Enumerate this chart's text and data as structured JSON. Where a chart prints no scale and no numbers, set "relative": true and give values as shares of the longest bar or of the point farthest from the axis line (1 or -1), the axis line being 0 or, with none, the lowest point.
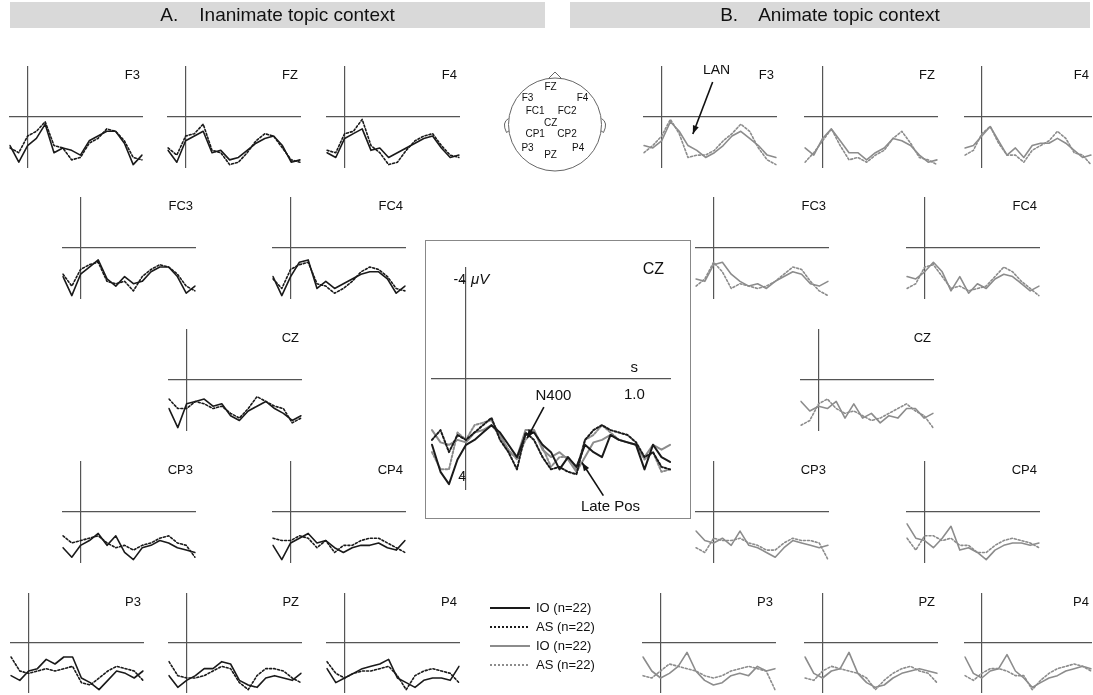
{
  "chart_data": [
    {
      "type": "other",
      "title": "A.    Inanimate topic context"
    },
    {
      "type": "line",
      "title": "F3",
      "relative": true,
      "marker": "none",
      "categories": [
        null,
        null,
        null,
        null,
        null,
        null,
        null,
        null,
        null,
        null,
        null,
        null,
        null,
        null,
        null,
        null
      ],
      "series": [
        {
          "color": "#1a1a1a",
          "line_style": "solid",
          "values": [
            -0.6,
            -0.95,
            -0.6,
            -0.45,
            -0.15,
            -0.75,
            -0.65,
            -0.7,
            -0.8,
            -0.5,
            -0.4,
            -0.3,
            -0.3,
            -0.55,
            -1,
            -0.8
          ]
        },
        {
          "color": "#1a1a1a",
          "line_style": "dotted",
          "values": [
            -0.65,
            -0.75,
            -0.4,
            -0.3,
            -0.1,
            -0.6,
            -0.65,
            -0.9,
            -0.85,
            -0.55,
            -0.45,
            -0.25,
            -0.3,
            -0.5,
            -0.85,
            -0.9
          ]
        }
      ]
    },
    {
      "type": "line",
      "title": "FZ",
      "relative": true,
      "marker": "none",
      "categories": [
        null,
        null,
        null,
        null,
        null,
        null,
        null,
        null,
        null,
        null,
        null,
        null,
        null,
        null,
        null,
        null
      ],
      "series": [
        {
          "color": "#1a1a1a",
          "line_style": "solid",
          "values": [
            -0.7,
            -0.95,
            -0.5,
            -0.4,
            -0.3,
            -0.75,
            -0.7,
            -0.9,
            -0.85,
            -0.7,
            -0.55,
            -0.45,
            -0.4,
            -0.6,
            -0.95,
            -0.9
          ]
        },
        {
          "color": "#1a1a1a",
          "line_style": "dotted",
          "values": [
            -0.65,
            -0.8,
            -0.4,
            -0.35,
            -0.15,
            -0.7,
            -0.75,
            -1,
            -0.95,
            -0.75,
            -0.5,
            -0.35,
            -0.4,
            -0.65,
            -0.9,
            -0.95
          ]
        }
      ]
    },
    {
      "type": "line",
      "title": "F4",
      "relative": true,
      "marker": "none",
      "categories": [
        null,
        null,
        null,
        null,
        null,
        null,
        null,
        null,
        null,
        null,
        null,
        null,
        null,
        null,
        null,
        null
      ],
      "series": [
        {
          "color": "#1a1a1a",
          "line_style": "solid",
          "values": [
            -0.75,
            -0.85,
            -0.45,
            -0.35,
            -0.25,
            -0.7,
            -0.65,
            -0.85,
            -0.75,
            -0.65,
            -0.55,
            -0.45,
            -0.4,
            -0.65,
            -0.85,
            -0.8
          ]
        },
        {
          "color": "#1a1a1a",
          "line_style": "dotted",
          "values": [
            -0.7,
            -0.75,
            -0.35,
            -0.3,
            -0.05,
            -0.6,
            -0.75,
            -1,
            -0.95,
            -0.7,
            -0.5,
            -0.4,
            -0.35,
            -0.6,
            -0.8,
            -0.85
          ]
        }
      ]
    },
    {
      "type": "line",
      "title": "FC3",
      "relative": true,
      "marker": "none",
      "categories": [
        null,
        null,
        null,
        null,
        null,
        null,
        null,
        null,
        null,
        null,
        null,
        null,
        null,
        null,
        null,
        null
      ],
      "series": [
        {
          "color": "#1a1a1a",
          "line_style": "solid",
          "values": [
            -0.6,
            -1,
            -0.55,
            -0.4,
            -0.25,
            -0.65,
            -0.8,
            -0.6,
            -0.75,
            -0.7,
            -0.5,
            -0.4,
            -0.4,
            -0.6,
            -0.95,
            -0.8
          ]
        },
        {
          "color": "#1a1a1a",
          "line_style": "dotted",
          "values": [
            -0.55,
            -0.8,
            -0.45,
            -0.35,
            -0.3,
            -0.7,
            -0.75,
            -0.7,
            -0.9,
            -0.6,
            -0.45,
            -0.35,
            -0.4,
            -0.55,
            -0.8,
            -0.9
          ]
        }
      ]
    },
    {
      "type": "line",
      "title": "FC4",
      "relative": true,
      "marker": "none",
      "categories": [
        null,
        null,
        null,
        null,
        null,
        null,
        null,
        null,
        null,
        null,
        null,
        null,
        null,
        null,
        null,
        null
      ],
      "series": [
        {
          "color": "#1a1a1a",
          "line_style": "solid",
          "values": [
            -0.6,
            -1,
            -0.6,
            -0.3,
            -0.25,
            -0.85,
            -0.7,
            -0.85,
            -0.75,
            -0.65,
            -0.55,
            -0.5,
            -0.5,
            -0.65,
            -0.95,
            -0.8
          ]
        },
        {
          "color": "#1a1a1a",
          "line_style": "dotted",
          "values": [
            -0.65,
            -0.85,
            -0.45,
            -0.35,
            -0.3,
            -0.75,
            -0.8,
            -0.95,
            -0.85,
            -0.7,
            -0.5,
            -0.4,
            -0.45,
            -0.6,
            -0.85,
            -0.9
          ]
        }
      ]
    },
    {
      "type": "line",
      "title": "CZ",
      "relative": true,
      "marker": "none",
      "categories": [
        null,
        null,
        null,
        null,
        null,
        null,
        null,
        null,
        null,
        null,
        null,
        null,
        null,
        null,
        null,
        null
      ],
      "series": [
        {
          "color": "#1a1a1a",
          "line_style": "solid",
          "values": [
            -0.6,
            -1,
            -0.5,
            -0.45,
            -0.4,
            -0.55,
            -0.5,
            -0.75,
            -0.85,
            -0.65,
            -0.55,
            -0.45,
            -0.6,
            -0.7,
            -0.85,
            -0.75
          ]
        },
        {
          "color": "#1a1a1a",
          "line_style": "dotted",
          "values": [
            -0.4,
            -0.6,
            -0.6,
            -0.45,
            -0.5,
            -0.6,
            -0.55,
            -0.7,
            -0.8,
            -0.6,
            -0.35,
            -0.45,
            -0.55,
            -0.6,
            -0.9,
            -0.8
          ]
        }
      ]
    },
    {
      "type": "line",
      "title": "CP3",
      "relative": true,
      "marker": "none",
      "categories": [
        null,
        null,
        null,
        null,
        null,
        null,
        null,
        null,
        null,
        null,
        null,
        null,
        null,
        null,
        null,
        null
      ],
      "series": [
        {
          "color": "#1a1a1a",
          "line_style": "solid",
          "values": [
            -0.75,
            -0.95,
            -0.7,
            -0.6,
            -0.45,
            -0.7,
            -0.5,
            -0.85,
            -1,
            -0.75,
            -0.7,
            -0.6,
            -0.65,
            -0.75,
            -0.8,
            -0.85
          ]
        },
        {
          "color": "#1a1a1a",
          "line_style": "dotted",
          "values": [
            -0.5,
            -0.65,
            -0.6,
            -0.55,
            -0.5,
            -0.65,
            -0.75,
            -0.7,
            -0.8,
            -0.7,
            -0.65,
            -0.55,
            -0.5,
            -0.65,
            -0.7,
            -0.95
          ]
        }
      ]
    },
    {
      "type": "line",
      "title": "CP4",
      "relative": true,
      "marker": "none",
      "categories": [
        null,
        null,
        null,
        null,
        null,
        null,
        null,
        null,
        null,
        null,
        null,
        null,
        null,
        null,
        null,
        null
      ],
      "series": [
        {
          "color": "#1a1a1a",
          "line_style": "solid",
          "values": [
            -0.7,
            -1,
            -0.65,
            -0.55,
            -0.45,
            -0.65,
            -0.6,
            -0.75,
            -0.85,
            -0.75,
            -0.7,
            -0.7,
            -0.65,
            -0.75,
            -0.8,
            -0.6
          ]
        },
        {
          "color": "#1a1a1a",
          "line_style": "dotted",
          "values": [
            -0.55,
            -0.6,
            -0.6,
            -0.5,
            -0.55,
            -0.75,
            -0.6,
            -0.85,
            -0.7,
            -0.7,
            -0.6,
            -0.55,
            -0.55,
            -0.65,
            -0.75,
            -0.85
          ]
        }
      ]
    },
    {
      "type": "line",
      "title": "P3",
      "relative": true,
      "marker": "none",
      "categories": [
        null,
        null,
        null,
        null,
        null,
        null,
        null,
        null,
        null,
        null,
        null,
        null,
        null,
        null,
        null,
        null
      ],
      "series": [
        {
          "color": "#1a1a1a",
          "line_style": "solid",
          "values": [
            -0.7,
            -0.8,
            -0.6,
            -0.55,
            -0.35,
            -0.45,
            -0.3,
            -0.3,
            -0.75,
            -0.85,
            -1,
            -0.8,
            -0.6,
            -0.65,
            -0.75,
            -0.6
          ]
        },
        {
          "color": "#1a1a1a",
          "line_style": "dotted",
          "values": [
            -0.3,
            -0.6,
            -0.65,
            -0.6,
            -0.55,
            -0.6,
            -0.55,
            -0.5,
            -0.85,
            -0.9,
            -0.75,
            -0.6,
            -0.5,
            -0.55,
            -0.6,
            -0.8
          ]
        }
      ]
    },
    {
      "type": "line",
      "title": "PZ",
      "relative": true,
      "marker": "none",
      "categories": [
        null,
        null,
        null,
        null,
        null,
        null,
        null,
        null,
        null,
        null,
        null,
        null,
        null,
        null,
        null,
        null
      ],
      "series": [
        {
          "color": "#1a1a1a",
          "line_style": "solid",
          "values": [
            -0.7,
            -0.95,
            -0.8,
            -0.7,
            -0.55,
            -0.55,
            -0.4,
            -0.45,
            -0.8,
            -0.9,
            -0.95,
            -0.75,
            -0.7,
            -0.75,
            -0.8,
            -0.65
          ]
        },
        {
          "color": "#1a1a1a",
          "line_style": "dotted",
          "values": [
            -0.4,
            -0.7,
            -0.75,
            -0.75,
            -0.7,
            -0.6,
            -0.5,
            -0.55,
            -0.85,
            -1,
            -0.7,
            -0.55,
            -0.55,
            -0.6,
            -0.75,
            -0.85
          ]
        }
      ]
    },
    {
      "type": "line",
      "title": "P4",
      "relative": true,
      "marker": "none",
      "categories": [
        null,
        null,
        null,
        null,
        null,
        null,
        null,
        null,
        null,
        null,
        null,
        null,
        null,
        null,
        null,
        null
      ],
      "series": [
        {
          "color": "#1a1a1a",
          "line_style": "solid",
          "values": [
            -0.55,
            -0.85,
            -0.75,
            -0.65,
            -0.55,
            -0.5,
            -0.45,
            -0.35,
            -0.75,
            -0.85,
            -0.95,
            -0.8,
            -0.75,
            -0.75,
            -0.8,
            -0.5
          ]
        },
        {
          "color": "#1a1a1a",
          "line_style": "dotted",
          "values": [
            -0.4,
            -0.65,
            -0.75,
            -0.65,
            -0.6,
            -0.6,
            -0.55,
            -0.5,
            -0.7,
            -1,
            -0.7,
            -0.6,
            -0.55,
            -0.6,
            -0.65,
            -0.85
          ]
        }
      ]
    },
    {
      "type": "other",
      "annotations": [
        "F3",
        "FZ",
        "F4",
        "FC1",
        "FC2",
        "CZ",
        "CP1",
        "CP2",
        "P3",
        "PZ",
        "P4"
      ]
    },
    {
      "type": "line",
      "title": "CZ",
      "marker": "none",
      "legend": "bottom",
      "xlabel": "s",
      "ylabel": "μV",
      "categories": [
        null,
        null,
        null,
        null,
        null,
        null,
        null,
        null,
        null,
        null,
        null,
        null,
        null,
        null,
        null,
        null,
        null,
        null,
        null,
        null,
        null,
        null,
        null,
        null,
        null,
        null,
        null,
        null,
        null
      ],
      "ylim": [
        4.5,
        -4.5
      ],
      "yticks": [
        -4,
        4
      ],
      "annotations": [
        "N400",
        "Late Pos",
        "1.0"
      ],
      "series": [
        {
          "name": "IO (n=22)",
          "color": "#1a1a1a",
          "line_style": "solid",
          "values": [
            2.7,
            3.8,
            4.3,
            3.3,
            2.7,
            2.5,
            2.2,
            1.9,
            2.2,
            2.7,
            3.2,
            2.3,
            2.2,
            2.7,
            3.0,
            3.7,
            3.2,
            3.6,
            2.7,
            3.0,
            3.2,
            2.3,
            2.5,
            2.6,
            2.7,
            3.7,
            2.7,
            3.2,
            3.4
          ]
        },
        {
          "name": "AS (n=22)",
          "color": "#1a1a1a",
          "line_style": "dotted",
          "values": [
            2.5,
            2.1,
            3.0,
            2.3,
            2.5,
            2.2,
            1.9,
            1.6,
            2.5,
            3.0,
            3.7,
            2.2,
            2.5,
            3.2,
            3.7,
            3.6,
            3.8,
            3.9,
            2.5,
            2.1,
            1.9,
            2.1,
            2.2,
            2.3,
            2.6,
            3.2,
            3.0,
            3.6,
            3.7
          ]
        },
        {
          "name": "IO (n=22)",
          "color": "#8c8c8c",
          "line_style": "solid",
          "values": [
            2.1,
            2.6,
            2.7,
            2.5,
            2.6,
            2.2,
            2.1,
            1.9,
            2.3,
            3.0,
            3.2,
            2.1,
            2.1,
            2.9,
            3.2,
            3.0,
            3.3,
            3.8,
            3.2,
            2.6,
            2.5,
            2.3,
            2.5,
            2.6,
            2.7,
            3.2,
            2.7,
            2.9,
            2.7
          ]
        },
        {
          "name": "AS (n=22)",
          "color": "#8c8c8c",
          "line_style": "dotted",
          "values": [
            3.0,
            3.7,
            3.7,
            2.2,
            2.5,
            1.9,
            1.8,
            1.7,
            2.3,
            2.9,
            3.3,
            2.5,
            2.1,
            2.8,
            3.6,
            3.2,
            3.2,
            3.7,
            2.5,
            2.3,
            1.9,
            2.2,
            2.5,
            2.6,
            2.7,
            3.3,
            3.0,
            3.8,
            3.7
          ]
        }
      ]
    },
    {
      "type": "other",
      "title": "B.    Animate topic context"
    },
    {
      "type": "line",
      "title": "F3",
      "relative": true,
      "marker": "none",
      "annotations": [
        "LAN"
      ],
      "categories": [
        null,
        null,
        null,
        null,
        null,
        null,
        null,
        null,
        null,
        null,
        null,
        null,
        null,
        null,
        null,
        null
      ],
      "series": [
        {
          "color": "#8c8c8c",
          "line_style": "solid",
          "values": [
            -0.6,
            -0.65,
            -0.5,
            -0.1,
            -0.3,
            -0.6,
            -0.7,
            -0.85,
            -0.75,
            -0.6,
            -0.4,
            -0.3,
            -0.45,
            -0.6,
            -0.8,
            -0.85
          ]
        },
        {
          "color": "#8c8c8c",
          "line_style": "dotted",
          "values": [
            -0.75,
            -0.6,
            -0.4,
            -0.05,
            -0.35,
            -0.85,
            -0.8,
            -0.8,
            -0.7,
            -0.5,
            -0.35,
            -0.15,
            -0.3,
            -0.65,
            -0.9,
            -1
          ]
        }
      ]
    },
    {
      "type": "line",
      "title": "FZ",
      "relative": true,
      "marker": "none",
      "categories": [
        null,
        null,
        null,
        null,
        null,
        null,
        null,
        null,
        null,
        null,
        null,
        null,
        null,
        null,
        null,
        null
      ],
      "series": [
        {
          "color": "#8c8c8c",
          "line_style": "solid",
          "values": [
            -0.65,
            -0.8,
            -0.45,
            -0.25,
            -0.5,
            -0.75,
            -0.75,
            -0.9,
            -0.75,
            -0.65,
            -0.45,
            -0.5,
            -0.6,
            -0.8,
            -0.95,
            -0.9
          ]
        },
        {
          "color": "#8c8c8c",
          "line_style": "dotted",
          "values": [
            -0.95,
            -0.75,
            -0.5,
            -0.25,
            -0.6,
            -0.9,
            -0.85,
            -0.95,
            -0.8,
            -0.7,
            -0.45,
            -0.3,
            -0.55,
            -0.85,
            -0.9,
            -1
          ]
        }
      ]
    },
    {
      "type": "line",
      "title": "F4",
      "relative": true,
      "marker": "none",
      "categories": [
        null,
        null,
        null,
        null,
        null,
        null,
        null,
        null,
        null,
        null,
        null,
        null,
        null,
        null,
        null,
        null
      ],
      "series": [
        {
          "color": "#8c8c8c",
          "line_style": "solid",
          "values": [
            -0.65,
            -0.6,
            -0.4,
            -0.2,
            -0.5,
            -0.8,
            -0.65,
            -0.85,
            -0.6,
            -0.55,
            -0.55,
            -0.45,
            -0.55,
            -0.7,
            -0.85,
            -0.8
          ]
        },
        {
          "color": "#8c8c8c",
          "line_style": "dotted",
          "values": [
            -0.8,
            -0.7,
            -0.35,
            -0.2,
            -0.55,
            -0.8,
            -0.8,
            -0.95,
            -0.7,
            -0.6,
            -0.5,
            -0.3,
            -0.45,
            -0.75,
            -0.8,
            -1
          ]
        }
      ]
    },
    {
      "type": "line",
      "title": "FC3",
      "relative": true,
      "marker": "none",
      "categories": [
        null,
        null,
        null,
        null,
        null,
        null,
        null,
        null,
        null,
        null,
        null,
        null,
        null,
        null,
        null,
        null
      ],
      "series": [
        {
          "color": "#8c8c8c",
          "line_style": "solid",
          "values": [
            -0.65,
            -0.7,
            -0.35,
            -0.3,
            -0.55,
            -0.7,
            -0.8,
            -0.75,
            -0.85,
            -0.7,
            -0.6,
            -0.5,
            -0.55,
            -0.75,
            -0.8,
            -0.7
          ]
        },
        {
          "color": "#8c8c8c",
          "line_style": "dotted",
          "values": [
            -0.8,
            -0.65,
            -0.3,
            -0.5,
            -0.85,
            -0.75,
            -0.8,
            -0.85,
            -0.8,
            -0.7,
            -0.55,
            -0.4,
            -0.45,
            -0.7,
            -0.9,
            -1
          ]
        }
      ]
    },
    {
      "type": "line",
      "title": "FC4",
      "relative": true,
      "marker": "none",
      "categories": [
        null,
        null,
        null,
        null,
        null,
        null,
        null,
        null,
        null,
        null,
        null,
        null,
        null,
        null,
        null,
        null
      ],
      "series": [
        {
          "color": "#8c8c8c",
          "line_style": "solid",
          "values": [
            -0.6,
            -0.65,
            -0.5,
            -0.3,
            -0.5,
            -0.9,
            -0.6,
            -0.95,
            -0.75,
            -0.85,
            -0.65,
            -0.55,
            -0.6,
            -0.75,
            -0.9,
            -0.8
          ]
        },
        {
          "color": "#8c8c8c",
          "line_style": "dotted",
          "values": [
            -0.85,
            -0.75,
            -0.4,
            -0.35,
            -0.6,
            -0.85,
            -0.8,
            -0.9,
            -0.85,
            -0.8,
            -0.6,
            -0.4,
            -0.5,
            -0.7,
            -0.85,
            -1
          ]
        }
      ]
    },
    {
      "type": "line",
      "title": "CZ",
      "relative": true,
      "marker": "none",
      "categories": [
        null,
        null,
        null,
        null,
        null,
        null,
        null,
        null,
        null,
        null,
        null,
        null,
        null,
        null,
        null,
        null
      ],
      "series": [
        {
          "color": "#8c8c8c",
          "line_style": "solid",
          "values": [
            -0.45,
            -0.65,
            -0.55,
            -0.6,
            -0.45,
            -0.8,
            -0.5,
            -0.8,
            -0.7,
            -0.9,
            -0.75,
            -0.8,
            -0.6,
            -0.6,
            -0.8,
            -0.7
          ]
        },
        {
          "color": "#8c8c8c",
          "line_style": "dotted",
          "values": [
            -0.95,
            -0.85,
            -0.5,
            -0.4,
            -0.6,
            -0.7,
            -0.65,
            -0.75,
            -0.85,
            -0.8,
            -0.7,
            -0.6,
            -0.5,
            -0.65,
            -0.75,
            -1
          ]
        }
      ]
    },
    {
      "type": "line",
      "title": "CP3",
      "relative": true,
      "marker": "none",
      "categories": [
        null,
        null,
        null,
        null,
        null,
        null,
        null,
        null,
        null,
        null,
        null,
        null,
        null,
        null,
        null,
        null
      ],
      "series": [
        {
          "color": "#8c8c8c",
          "line_style": "solid",
          "values": [
            -0.4,
            -0.6,
            -0.65,
            -0.55,
            -0.7,
            -0.4,
            -0.7,
            -0.75,
            -0.85,
            -0.95,
            -0.75,
            -0.6,
            -0.65,
            -0.7,
            -0.75,
            -0.7
          ]
        },
        {
          "color": "#8c8c8c",
          "line_style": "dotted",
          "values": [
            -0.75,
            -0.85,
            -0.55,
            -0.6,
            -0.6,
            -0.55,
            -0.65,
            -0.7,
            -0.8,
            -0.8,
            -0.65,
            -0.55,
            -0.6,
            -0.6,
            -0.65,
            -1
          ]
        }
      ]
    },
    {
      "type": "line",
      "title": "CP4",
      "relative": true,
      "marker": "none",
      "categories": [
        null,
        null,
        null,
        null,
        null,
        null,
        null,
        null,
        null,
        null,
        null,
        null,
        null,
        null,
        null,
        null
      ],
      "series": [
        {
          "color": "#8c8c8c",
          "line_style": "solid",
          "values": [
            -0.25,
            -0.55,
            -0.6,
            -0.75,
            -0.55,
            -0.3,
            -0.8,
            -0.75,
            -0.85,
            -1,
            -0.8,
            -0.7,
            -0.65,
            -0.65,
            -0.7,
            -0.65
          ]
        },
        {
          "color": "#8c8c8c",
          "line_style": "dotted",
          "values": [
            -0.55,
            -0.8,
            -0.5,
            -0.5,
            -0.6,
            -0.55,
            -0.7,
            -0.7,
            -0.85,
            -0.85,
            -0.7,
            -0.6,
            -0.55,
            -0.6,
            -0.65,
            -0.75
          ]
        }
      ]
    },
    {
      "type": "line",
      "title": "P3",
      "relative": true,
      "marker": "none",
      "categories": [
        null,
        null,
        null,
        null,
        null,
        null,
        null,
        null,
        null,
        null,
        null,
        null,
        null,
        null,
        null,
        null
      ],
      "series": [
        {
          "color": "#8c8c8c",
          "line_style": "solid",
          "values": [
            -0.3,
            -0.6,
            -0.75,
            -0.65,
            -0.5,
            -0.2,
            -0.6,
            -0.8,
            -0.9,
            -0.85,
            -0.7,
            -0.65,
            -0.7,
            -0.5,
            -0.6,
            -0.55
          ]
        },
        {
          "color": "#8c8c8c",
          "line_style": "dotted",
          "values": [
            -0.7,
            -0.75,
            -0.6,
            -0.45,
            -0.5,
            -0.55,
            -0.6,
            -0.7,
            -0.75,
            -0.7,
            -0.6,
            -0.55,
            -0.5,
            -0.55,
            -0.6,
            -1
          ]
        }
      ]
    },
    {
      "type": "line",
      "title": "PZ",
      "relative": true,
      "marker": "none",
      "categories": [
        null,
        null,
        null,
        null,
        null,
        null,
        null,
        null,
        null,
        null,
        null,
        null,
        null,
        null,
        null,
        null
      ],
      "series": [
        {
          "color": "#8c8c8c",
          "line_style": "solid",
          "values": [
            -0.3,
            -0.65,
            -0.75,
            -0.6,
            -0.55,
            -0.2,
            -0.65,
            -0.85,
            -0.95,
            -0.9,
            -0.75,
            -0.65,
            -0.6,
            -0.55,
            -0.6,
            -0.65
          ]
        },
        {
          "color": "#8c8c8c",
          "line_style": "dotted",
          "values": [
            -0.75,
            -0.8,
            -0.6,
            -0.5,
            -0.55,
            -0.6,
            -0.65,
            -0.75,
            -1,
            -0.8,
            -0.65,
            -0.55,
            -0.5,
            -0.6,
            -0.65,
            -0.85
          ]
        }
      ]
    },
    {
      "type": "line",
      "title": "P4",
      "relative": true,
      "marker": "none",
      "categories": [
        null,
        null,
        null,
        null,
        null,
        null,
        null,
        null,
        null,
        null,
        null,
        null,
        null,
        null,
        null,
        null
      ],
      "series": [
        {
          "color": "#8c8c8c",
          "line_style": "solid",
          "values": [
            -0.3,
            -0.65,
            -0.75,
            -0.6,
            -0.55,
            -0.25,
            -0.6,
            -0.75,
            -0.95,
            -0.85,
            -0.75,
            -0.7,
            -0.6,
            -0.55,
            -0.5,
            -0.55
          ]
        },
        {
          "color": "#8c8c8c",
          "line_style": "dotted",
          "values": [
            -0.7,
            -0.8,
            -0.65,
            -0.55,
            -0.55,
            -0.6,
            -0.7,
            -0.7,
            -1,
            -0.8,
            -0.65,
            -0.55,
            -0.5,
            -0.45,
            -0.5,
            -0.6
          ]
        }
      ]
    }
  ]
}
